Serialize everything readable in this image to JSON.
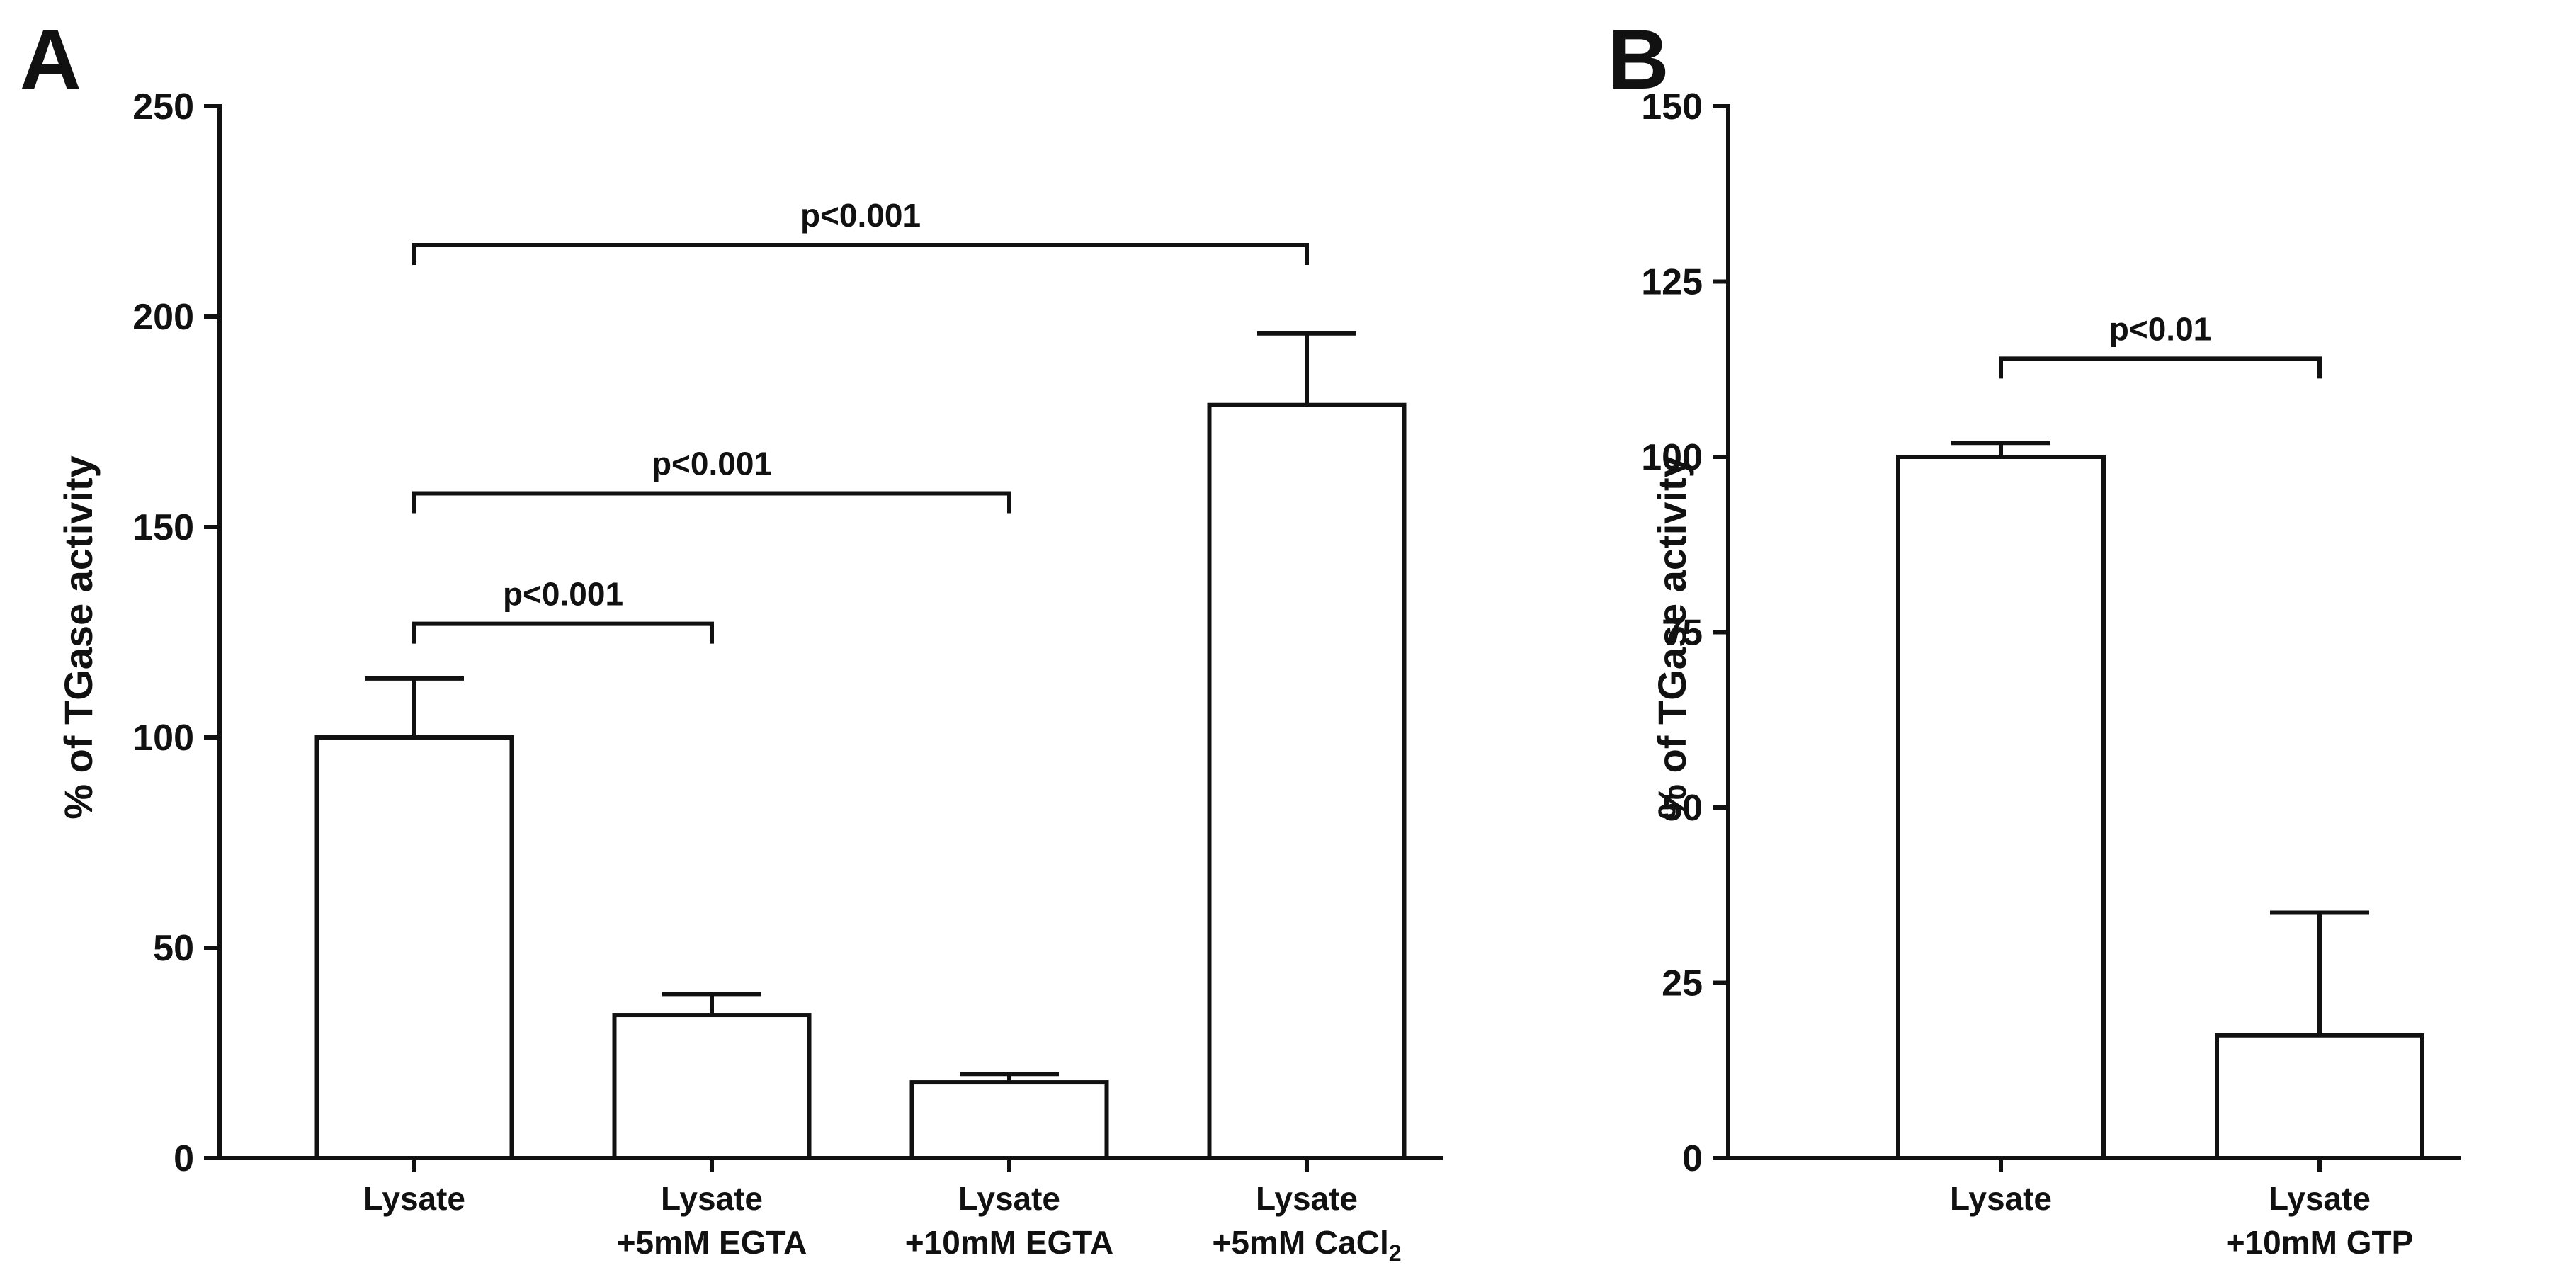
{
  "chart_data": [
    {
      "panel": "A",
      "type": "bar",
      "ylabel": "% of TGase activity",
      "xlabel": "",
      "ylim": [
        0,
        250
      ],
      "yticks": [
        0,
        50,
        100,
        150,
        200,
        250
      ],
      "grid": false,
      "categories": [
        [
          "Lysate"
        ],
        [
          "Lysate",
          "+5mM EGTA"
        ],
        [
          "Lysate",
          "+10mM EGTA"
        ],
        [
          "Lysate",
          "+5mM CaCl2"
        ]
      ],
      "values": [
        100,
        34,
        18,
        179
      ],
      "errors": [
        14,
        5,
        2,
        17
      ],
      "colors": [
        "#9b0000",
        "#c66000",
        "#e6b07f",
        "#d3d3d3"
      ],
      "significance": [
        {
          "from": 0,
          "to": 1,
          "y": 127,
          "label": "p<0.001"
        },
        {
          "from": 0,
          "to": 2,
          "y": 158,
          "label": "p<0.001"
        },
        {
          "from": 0,
          "to": 3,
          "y": 217,
          "label": "p<0.001"
        }
      ]
    },
    {
      "panel": "B",
      "type": "bar",
      "ylabel": "% of TGase activity",
      "xlabel": "",
      "ylim": [
        0,
        150
      ],
      "yticks": [
        0,
        25,
        50,
        75,
        100,
        125,
        150
      ],
      "grid": false,
      "categories": [
        [
          "Lysate"
        ],
        [
          "Lysate",
          "+10mM GTP"
        ]
      ],
      "values": [
        100,
        17.5
      ],
      "errors": [
        2,
        17.5
      ],
      "colors": [
        "#9b0000",
        "#006040"
      ],
      "significance": [
        {
          "from": 0,
          "to": 1,
          "y": 114,
          "label": "p<0.01"
        }
      ]
    }
  ]
}
